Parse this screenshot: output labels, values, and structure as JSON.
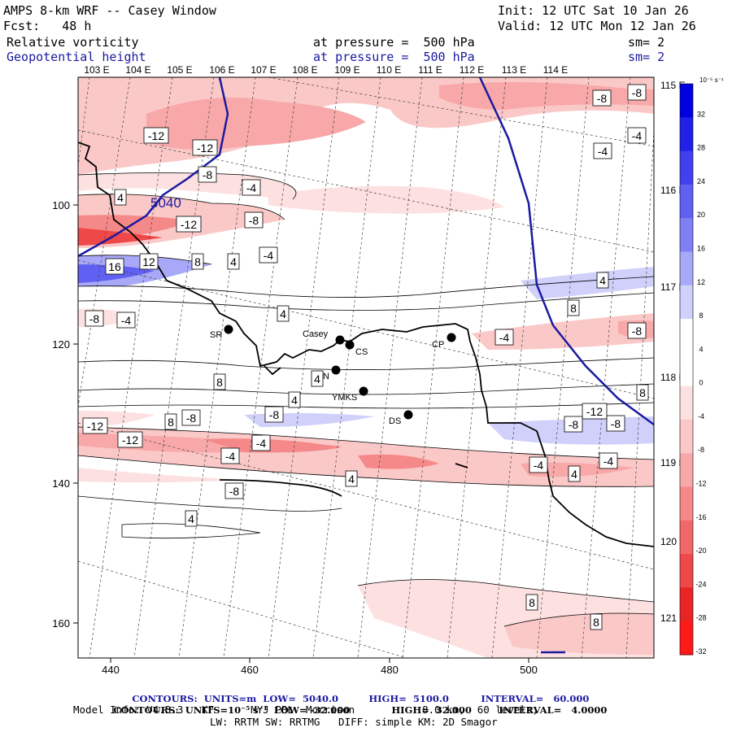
{
  "header": {
    "title": "AMPS 8-km WRF -- Casey Window",
    "init": "Init: 12 UTC Sat 10 Jan 26",
    "fcst": "Fcst:   48 h",
    "valid": "Valid: 12 UTC Mon 12 Jan 26",
    "field1": "Relative vorticity",
    "field1_level": "at pressure =  500 hPa",
    "field1_sm": "sm= 2",
    "field2": "Geopotential height",
    "field2_level": "at pressure =  500 hPa",
    "field2_sm": "sm= 2"
  },
  "colors": {
    "height_contour": "#1a1aa0",
    "coast": "#000000",
    "pos_vort": "#3b3bd8",
    "neg_vort": "#f08080"
  },
  "lon_labels": [
    "103 E",
    "104 E",
    "105 E",
    "106 E",
    "107 E",
    "108 E",
    "109 E",
    "110 E",
    "111 E",
    "112 E",
    "113 E",
    "114 E"
  ],
  "lon_labels_right": [
    "115 E",
    "116 E",
    "117 E",
    "118 E",
    "119 E",
    "120 E",
    "121 E"
  ],
  "x_ticks": [
    "440",
    "460",
    "480",
    "500"
  ],
  "y_ticks": [
    "100",
    "120",
    "140",
    "160"
  ],
  "colorbar": {
    "unit": "10⁻⁵ s⁻¹",
    "labels": [
      "32",
      "28",
      "24",
      "20",
      "16",
      "12",
      "8",
      "4",
      "0",
      "-4",
      "-8",
      "-12",
      "-16",
      "-20",
      "-24",
      "-28",
      "-32"
    ],
    "colors": [
      "#0000e0",
      "#2020e8",
      "#4040ee",
      "#6060f2",
      "#8080f5",
      "#a8a8f8",
      "#d0d0fb",
      "#ffffff",
      "#ffffff",
      "#fde0e0",
      "#fbc8c8",
      "#f8a8a8",
      "#f58888",
      "#f26868",
      "#ee4848",
      "#e82424",
      "#ff1a1a"
    ]
  },
  "stations": [
    {
      "name": "SR"
    },
    {
      "name": "Casey"
    },
    {
      "name": "CS"
    },
    {
      "name": "N"
    },
    {
      "name": "YMKS"
    },
    {
      "name": "DS"
    },
    {
      "name": "CP"
    }
  ],
  "height_label": "5040",
  "vort_labels": [
    "-12",
    "-12",
    "-8",
    "-8",
    "-8",
    "-4",
    "-4",
    "4",
    "-4",
    "-12",
    "-8",
    "16",
    "12",
    "8",
    "4",
    "-4",
    "4",
    "-8",
    "-4",
    "4",
    "8",
    "-8",
    "-4",
    "8",
    "4",
    "4",
    "8",
    "8",
    "-8",
    "-12",
    "-12",
    "-8",
    "-12",
    "-8",
    "-8",
    "-4",
    "-4",
    "-4",
    "4",
    "-4",
    "-8",
    "4",
    "4",
    "8",
    "8",
    "4",
    "-4",
    "-8"
  ],
  "footer": {
    "line1_a": "CONTOURS:  UNITS=m  LOW=  5040.0",
    "line1_b": "HIGH=  5100.0",
    "line1_c": "INTERVAL=   60.000",
    "line2_a": "CONTOURS:  UNITS=10⁻⁵ s⁻¹  LOW= -32.000",
    "line2_b": "HIGH=  32.000",
    "line2_c": "INTERVAL=   4.0000",
    "line3": "Model Info: V4.3.3   KF      MYJ PBL  Morrison           8.0 km,  60 levels,",
    "line4": "LW: RRTM SW: RRTMG   DIFF: simple KM: 2D Smagor"
  }
}
